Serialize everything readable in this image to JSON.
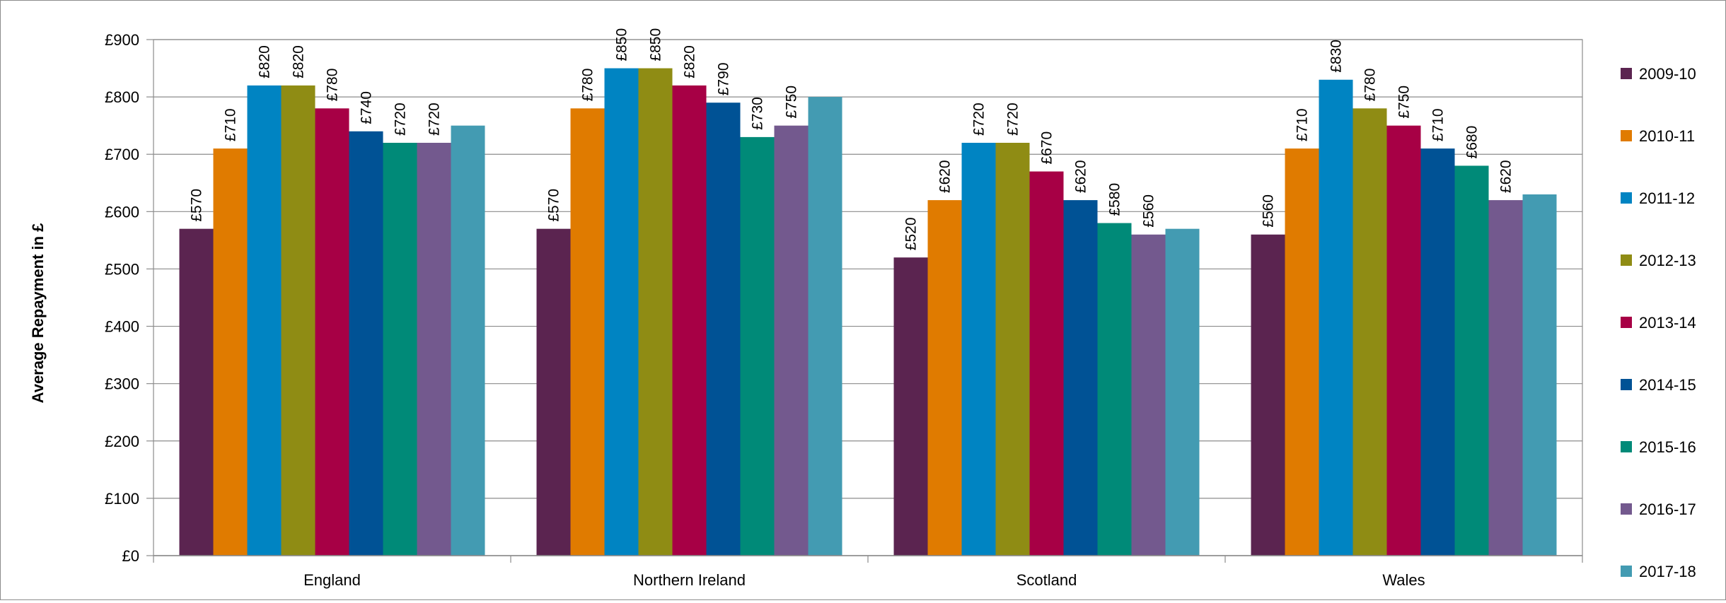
{
  "chart_data": {
    "type": "bar",
    "title": "",
    "xlabel": "",
    "ylabel": "Average Repayment in £",
    "ylim": [
      0,
      900
    ],
    "ytick_step": 100,
    "ytick_labels": [
      "£0",
      "£100",
      "£200",
      "£300",
      "£400",
      "£500",
      "£600",
      "£700",
      "£800",
      "£900"
    ],
    "grid": true,
    "legend_position": "right",
    "categories": [
      "England",
      "Northern Ireland",
      "Scotland",
      "Wales"
    ],
    "series": [
      {
        "name": "2009-10",
        "color": "#5b2450",
        "values": [
          570,
          570,
          520,
          560
        ],
        "labels": [
          "£570",
          "£570",
          "£520",
          "£560"
        ]
      },
      {
        "name": "2010-11",
        "color": "#e07b00",
        "values": [
          710,
          780,
          620,
          710
        ],
        "labels": [
          "£710",
          "£780",
          "£620",
          "£710"
        ]
      },
      {
        "name": "2011-12",
        "color": "#0084c2",
        "values": [
          820,
          850,
          720,
          830
        ],
        "labels": [
          "£820",
          "£850",
          "£720",
          "£830"
        ]
      },
      {
        "name": "2012-13",
        "color": "#8f8c14",
        "values": [
          820,
          850,
          720,
          780
        ],
        "labels": [
          "£820",
          "£850",
          "£720",
          "£780"
        ]
      },
      {
        "name": "2013-14",
        "color": "#a70045",
        "values": [
          780,
          820,
          670,
          750
        ],
        "labels": [
          "£780",
          "£820",
          "£670",
          "£750"
        ]
      },
      {
        "name": "2014-15",
        "color": "#005295",
        "values": [
          740,
          790,
          620,
          710
        ],
        "labels": [
          "£740",
          "£790",
          "£620",
          "£710"
        ]
      },
      {
        "name": "2015-16",
        "color": "#008a78",
        "values": [
          720,
          730,
          580,
          680
        ],
        "labels": [
          "£720",
          "£730",
          "£580",
          "£680"
        ]
      },
      {
        "name": "2016-17",
        "color": "#73598e",
        "values": [
          720,
          750,
          560,
          620
        ],
        "labels": [
          "£720",
          "£750",
          "£560",
          "£620"
        ]
      },
      {
        "name": "2017-18",
        "color": "#439bb2",
        "values": [
          750,
          800,
          570,
          630
        ],
        "labels": [
          "",
          "",
          "",
          ""
        ]
      }
    ]
  }
}
